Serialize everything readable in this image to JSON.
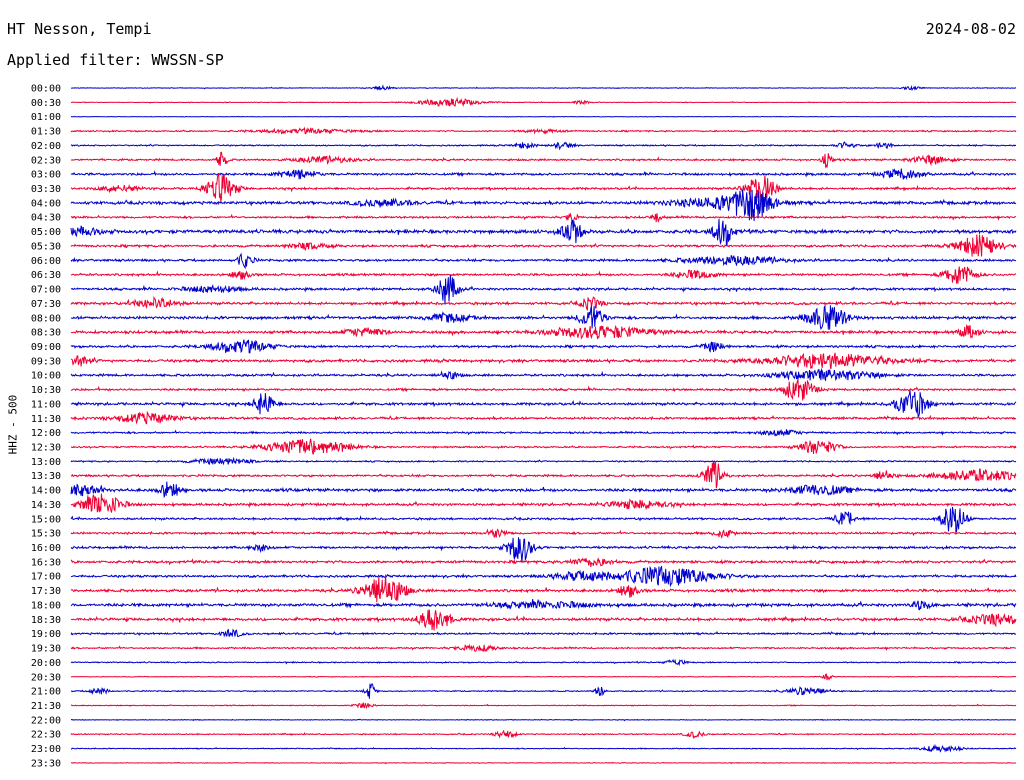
{
  "header": {
    "station": "HT Nesson, Tempi",
    "date": "2024-08-02",
    "filter_label": "Applied filter: WWSSN-SP"
  },
  "chart_data": {
    "type": "line",
    "title": "HT Nesson, Tempi",
    "subtitle": "Applied filter: WWSSN-SP",
    "ylabel": "HHZ - 500",
    "xlabel": "",
    "grid": false,
    "colors": [
      "#0000cc",
      "#ee0033"
    ],
    "row_interval_minutes": 30,
    "rows": [
      {
        "label": "00:00",
        "color": "#0000cc",
        "noise": 0.3,
        "events": [
          {
            "t": 0.33,
            "a": 2,
            "d": 0.01
          },
          {
            "t": 0.89,
            "a": 1.5,
            "d": 0.01
          }
        ]
      },
      {
        "label": "00:30",
        "color": "#ee0033",
        "noise": 0.3,
        "events": [
          {
            "t": 0.4,
            "a": 4,
            "d": 0.03
          },
          {
            "t": 0.54,
            "a": 1.5,
            "d": 0.01
          }
        ]
      },
      {
        "label": "01:00",
        "color": "#0000cc",
        "noise": 0.2,
        "events": []
      },
      {
        "label": "01:30",
        "color": "#ee0033",
        "noise": 0.6,
        "events": [
          {
            "t": 0.25,
            "a": 2,
            "d": 0.05
          },
          {
            "t": 0.5,
            "a": 1.5,
            "d": 0.02
          }
        ]
      },
      {
        "label": "02:00",
        "color": "#0000cc",
        "noise": 0.6,
        "events": [
          {
            "t": 0.48,
            "a": 3,
            "d": 0.01
          },
          {
            "t": 0.52,
            "a": 3,
            "d": 0.01
          },
          {
            "t": 0.82,
            "a": 3,
            "d": 0.01
          },
          {
            "t": 0.86,
            "a": 2.5,
            "d": 0.01
          }
        ]
      },
      {
        "label": "02:30",
        "color": "#ee0033",
        "noise": 0.8,
        "events": [
          {
            "t": 0.16,
            "a": 8,
            "d": 0.005
          },
          {
            "t": 0.27,
            "a": 3,
            "d": 0.03
          },
          {
            "t": 0.8,
            "a": 7,
            "d": 0.005
          },
          {
            "t": 0.91,
            "a": 4,
            "d": 0.02
          }
        ]
      },
      {
        "label": "03:00",
        "color": "#0000cc",
        "noise": 1.0,
        "events": [
          {
            "t": 0.24,
            "a": 4,
            "d": 0.02
          },
          {
            "t": 0.88,
            "a": 5,
            "d": 0.02
          }
        ]
      },
      {
        "label": "03:30",
        "color": "#ee0033",
        "noise": 0.9,
        "events": [
          {
            "t": 0.158,
            "a": 14,
            "d": 0.015
          },
          {
            "t": 0.73,
            "a": 14,
            "d": 0.015
          },
          {
            "t": 0.05,
            "a": 3,
            "d": 0.02
          }
        ]
      },
      {
        "label": "04:00",
        "color": "#0000cc",
        "noise": 1.3,
        "events": [
          {
            "t": 0.72,
            "a": 14,
            "d": 0.02
          },
          {
            "t": 0.69,
            "a": 5,
            "d": 0.05
          },
          {
            "t": 0.33,
            "a": 3,
            "d": 0.03
          }
        ]
      },
      {
        "label": "04:30",
        "color": "#ee0033",
        "noise": 0.9,
        "events": [
          {
            "t": 0.53,
            "a": 5,
            "d": 0.005
          },
          {
            "t": 0.62,
            "a": 5,
            "d": 0.005
          }
        ]
      },
      {
        "label": "05:00",
        "color": "#0000cc",
        "noise": 1.5,
        "events": [
          {
            "t": 0.53,
            "a": 12,
            "d": 0.01
          },
          {
            "t": 0.69,
            "a": 14,
            "d": 0.01
          },
          {
            "t": 0.01,
            "a": 4,
            "d": 0.02
          }
        ]
      },
      {
        "label": "05:30",
        "color": "#ee0033",
        "noise": 1.0,
        "events": [
          {
            "t": 0.96,
            "a": 11,
            "d": 0.02
          },
          {
            "t": 0.25,
            "a": 3,
            "d": 0.02
          }
        ]
      },
      {
        "label": "06:00",
        "color": "#0000cc",
        "noise": 1.0,
        "events": [
          {
            "t": 0.184,
            "a": 7,
            "d": 0.008
          },
          {
            "t": 0.7,
            "a": 4,
            "d": 0.05
          }
        ]
      },
      {
        "label": "06:30",
        "color": "#ee0033",
        "noise": 1.0,
        "events": [
          {
            "t": 0.94,
            "a": 10,
            "d": 0.015
          },
          {
            "t": 0.66,
            "a": 4,
            "d": 0.02
          },
          {
            "t": 0.18,
            "a": 4,
            "d": 0.01
          }
        ]
      },
      {
        "label": "07:00",
        "color": "#0000cc",
        "noise": 1.0,
        "events": [
          {
            "t": 0.398,
            "a": 16,
            "d": 0.01
          },
          {
            "t": 0.15,
            "a": 3,
            "d": 0.03
          }
        ]
      },
      {
        "label": "07:30",
        "color": "#ee0033",
        "noise": 1.1,
        "events": [
          {
            "t": 0.55,
            "a": 6,
            "d": 0.01
          },
          {
            "t": 0.09,
            "a": 5,
            "d": 0.02
          }
        ]
      },
      {
        "label": "08:00",
        "color": "#0000cc",
        "noise": 1.2,
        "events": [
          {
            "t": 0.551,
            "a": 12,
            "d": 0.012
          },
          {
            "t": 0.8,
            "a": 12,
            "d": 0.02
          },
          {
            "t": 0.4,
            "a": 4,
            "d": 0.02
          }
        ]
      },
      {
        "label": "08:30",
        "color": "#ee0033",
        "noise": 1.2,
        "events": [
          {
            "t": 0.56,
            "a": 6,
            "d": 0.05
          },
          {
            "t": 0.95,
            "a": 6,
            "d": 0.01
          },
          {
            "t": 0.31,
            "a": 4,
            "d": 0.02
          }
        ]
      },
      {
        "label": "09:00",
        "color": "#0000cc",
        "noise": 1.0,
        "events": [
          {
            "t": 0.18,
            "a": 6,
            "d": 0.03
          },
          {
            "t": 0.68,
            "a": 5,
            "d": 0.01
          }
        ]
      },
      {
        "label": "09:30",
        "color": "#ee0033",
        "noise": 1.2,
        "events": [
          {
            "t": 0.8,
            "a": 7,
            "d": 0.06
          },
          {
            "t": 0.01,
            "a": 5,
            "d": 0.01
          }
        ]
      },
      {
        "label": "10:00",
        "color": "#0000cc",
        "noise": 1.0,
        "events": [
          {
            "t": 0.4,
            "a": 4,
            "d": 0.01
          },
          {
            "t": 0.8,
            "a": 5,
            "d": 0.05
          }
        ]
      },
      {
        "label": "10:30",
        "color": "#ee0033",
        "noise": 0.9,
        "events": [
          {
            "t": 0.77,
            "a": 12,
            "d": 0.015
          }
        ]
      },
      {
        "label": "11:00",
        "color": "#0000cc",
        "noise": 1.1,
        "events": [
          {
            "t": 0.204,
            "a": 11,
            "d": 0.01
          },
          {
            "t": 0.89,
            "a": 15,
            "d": 0.015
          }
        ]
      },
      {
        "label": "11:30",
        "color": "#ee0033",
        "noise": 1.0,
        "events": [
          {
            "t": 0.08,
            "a": 5,
            "d": 0.03
          }
        ]
      },
      {
        "label": "12:00",
        "color": "#0000cc",
        "noise": 0.8,
        "events": [
          {
            "t": 0.75,
            "a": 3,
            "d": 0.02
          }
        ]
      },
      {
        "label": "12:30",
        "color": "#ee0033",
        "noise": 0.7,
        "events": [
          {
            "t": 0.25,
            "a": 8,
            "d": 0.04
          },
          {
            "t": 0.79,
            "a": 7,
            "d": 0.02
          }
        ]
      },
      {
        "label": "13:00",
        "color": "#0000cc",
        "noise": 0.6,
        "events": [
          {
            "t": 0.16,
            "a": 3,
            "d": 0.03
          }
        ]
      },
      {
        "label": "13:30",
        "color": "#ee0033",
        "noise": 0.9,
        "events": [
          {
            "t": 0.68,
            "a": 14,
            "d": 0.01
          },
          {
            "t": 0.96,
            "a": 6,
            "d": 0.04
          },
          {
            "t": 0.86,
            "a": 5,
            "d": 0.01
          }
        ]
      },
      {
        "label": "14:00",
        "color": "#0000cc",
        "noise": 1.3,
        "events": [
          {
            "t": 0.104,
            "a": 8,
            "d": 0.01
          },
          {
            "t": 0.79,
            "a": 5,
            "d": 0.03
          },
          {
            "t": 0.01,
            "a": 5,
            "d": 0.02
          }
        ]
      },
      {
        "label": "14:30",
        "color": "#ee0033",
        "noise": 1.1,
        "events": [
          {
            "t": 0.032,
            "a": 11,
            "d": 0.02
          },
          {
            "t": 0.6,
            "a": 4,
            "d": 0.03
          }
        ]
      },
      {
        "label": "15:00",
        "color": "#0000cc",
        "noise": 0.9,
        "events": [
          {
            "t": 0.82,
            "a": 7,
            "d": 0.01
          },
          {
            "t": 0.934,
            "a": 15,
            "d": 0.012
          }
        ]
      },
      {
        "label": "15:30",
        "color": "#ee0033",
        "noise": 0.9,
        "events": [
          {
            "t": 0.45,
            "a": 4,
            "d": 0.01
          },
          {
            "t": 0.69,
            "a": 4,
            "d": 0.01
          }
        ]
      },
      {
        "label": "16:00",
        "color": "#0000cc",
        "noise": 1.0,
        "events": [
          {
            "t": 0.475,
            "a": 15,
            "d": 0.012
          },
          {
            "t": 0.2,
            "a": 3,
            "d": 0.01
          }
        ]
      },
      {
        "label": "16:30",
        "color": "#ee0033",
        "noise": 1.1,
        "events": [
          {
            "t": 0.55,
            "a": 4,
            "d": 0.02
          }
        ]
      },
      {
        "label": "17:00",
        "color": "#0000cc",
        "noise": 1.0,
        "events": [
          {
            "t": 0.63,
            "a": 9,
            "d": 0.05
          },
          {
            "t": 0.54,
            "a": 4,
            "d": 0.03
          }
        ]
      },
      {
        "label": "17:30",
        "color": "#ee0033",
        "noise": 1.2,
        "events": [
          {
            "t": 0.331,
            "a": 16,
            "d": 0.02
          },
          {
            "t": 0.59,
            "a": 6,
            "d": 0.01
          }
        ]
      },
      {
        "label": "18:00",
        "color": "#0000cc",
        "noise": 1.3,
        "events": [
          {
            "t": 0.9,
            "a": 4,
            "d": 0.01
          },
          {
            "t": 0.5,
            "a": 3,
            "d": 0.05
          }
        ]
      },
      {
        "label": "18:30",
        "color": "#ee0033",
        "noise": 1.2,
        "events": [
          {
            "t": 0.385,
            "a": 12,
            "d": 0.015
          },
          {
            "t": 0.98,
            "a": 5,
            "d": 0.03
          }
        ]
      },
      {
        "label": "19:00",
        "color": "#0000cc",
        "noise": 0.8,
        "events": [
          {
            "t": 0.17,
            "a": 4,
            "d": 0.01
          }
        ]
      },
      {
        "label": "19:30",
        "color": "#ee0033",
        "noise": 0.7,
        "events": [
          {
            "t": 0.43,
            "a": 3,
            "d": 0.02
          }
        ]
      },
      {
        "label": "20:00",
        "color": "#0000cc",
        "noise": 0.5,
        "events": [
          {
            "t": 0.64,
            "a": 3,
            "d": 0.01
          }
        ]
      },
      {
        "label": "20:30",
        "color": "#ee0033",
        "noise": 0.3,
        "events": [
          {
            "t": 0.8,
            "a": 3,
            "d": 0.005
          }
        ]
      },
      {
        "label": "21:00",
        "color": "#0000cc",
        "noise": 0.5,
        "events": [
          {
            "t": 0.317,
            "a": 8,
            "d": 0.005
          },
          {
            "t": 0.56,
            "a": 6,
            "d": 0.005
          },
          {
            "t": 0.78,
            "a": 4,
            "d": 0.02
          },
          {
            "t": 0.03,
            "a": 3,
            "d": 0.01
          }
        ]
      },
      {
        "label": "21:30",
        "color": "#ee0033",
        "noise": 0.4,
        "events": [
          {
            "t": 0.31,
            "a": 3,
            "d": 0.01
          }
        ]
      },
      {
        "label": "22:00",
        "color": "#0000cc",
        "noise": 0.3,
        "events": []
      },
      {
        "label": "22:30",
        "color": "#ee0033",
        "noise": 0.5,
        "events": [
          {
            "t": 0.46,
            "a": 4,
            "d": 0.01
          },
          {
            "t": 0.66,
            "a": 3,
            "d": 0.01
          }
        ]
      },
      {
        "label": "23:00",
        "color": "#0000cc",
        "noise": 0.4,
        "events": [
          {
            "t": 0.92,
            "a": 3,
            "d": 0.02
          }
        ]
      },
      {
        "label": "23:30",
        "color": "#ee0033",
        "noise": 0.3,
        "events": []
      }
    ]
  }
}
